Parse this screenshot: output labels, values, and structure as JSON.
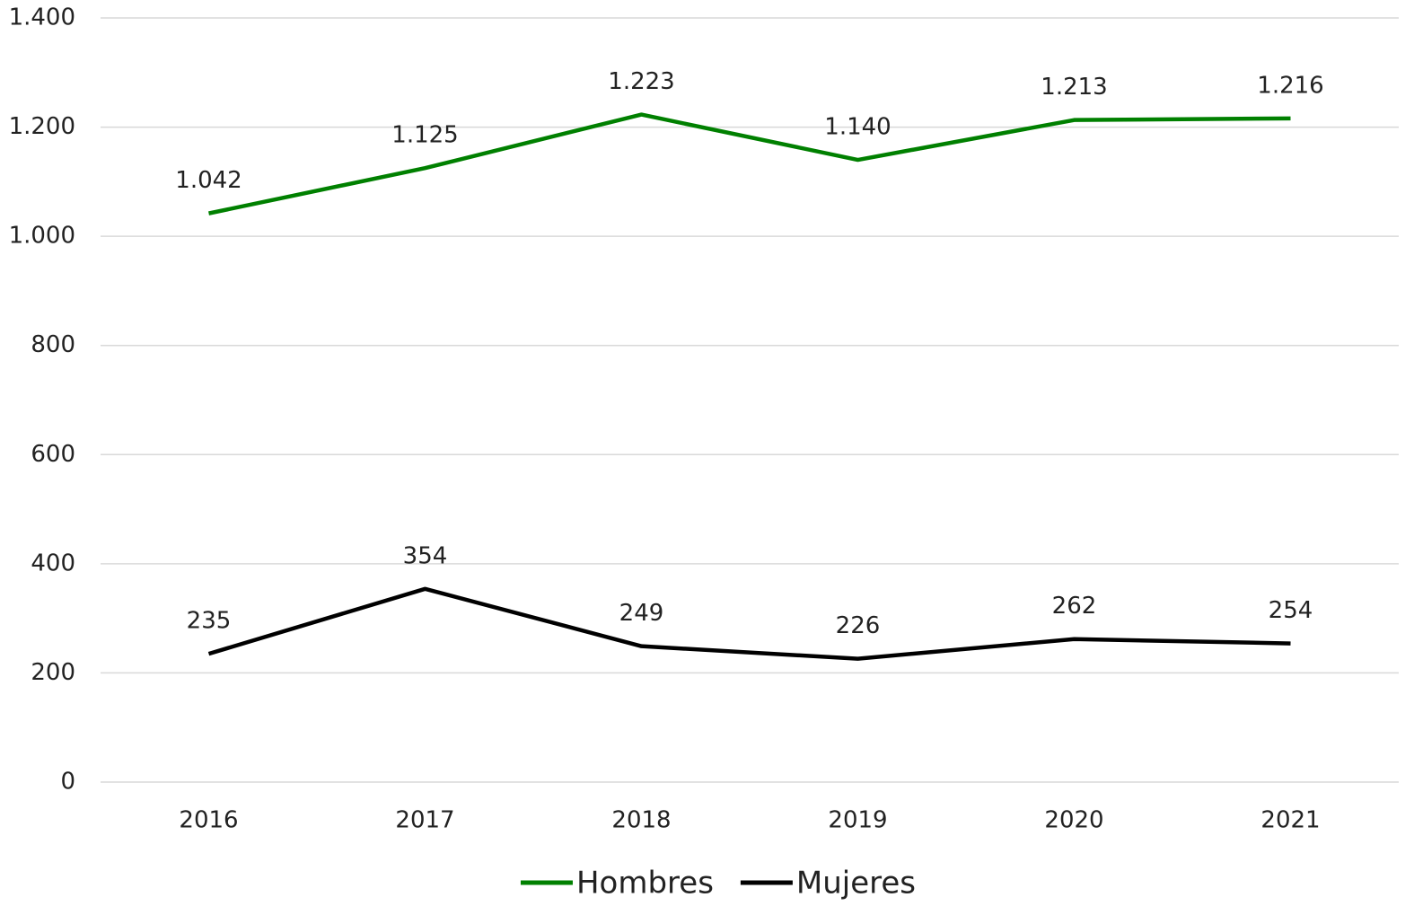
{
  "chart_data": {
    "type": "line",
    "categories": [
      "2016",
      "2017",
      "2018",
      "2019",
      "2020",
      "2021"
    ],
    "series": [
      {
        "name": "Hombres",
        "color": "#008000",
        "values": [
          1042,
          1125,
          1223,
          1140,
          1213,
          1216
        ],
        "value_labels": [
          "1.042",
          "1.125",
          "1.223",
          "1.140",
          "1.213",
          "1.216"
        ]
      },
      {
        "name": "Mujeres",
        "color": "#000000",
        "values": [
          235,
          354,
          249,
          226,
          262,
          254
        ]
      }
    ],
    "ylim": [
      0,
      1400
    ],
    "yticks": [
      0,
      200,
      400,
      600,
      800,
      {
        "value": 1000,
        "label": "1.000"
      },
      {
        "value": 1200,
        "label": "1.200"
      },
      {
        "value": 1400,
        "label": "1.400"
      }
    ],
    "grid": true,
    "legend": "bottom"
  }
}
